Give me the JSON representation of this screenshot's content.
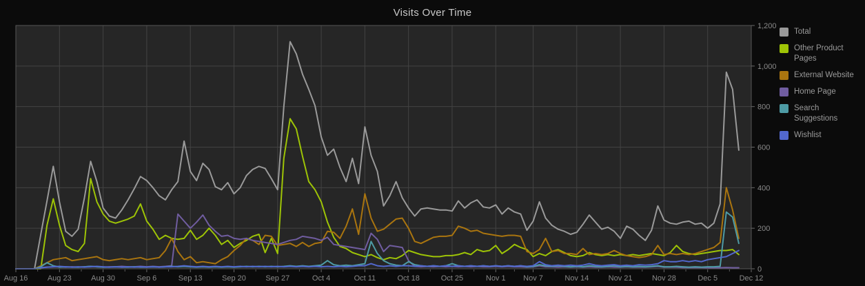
{
  "title": "Visits Over Time",
  "panel": {
    "background_color": "#0b0b0b",
    "plot_background_color": "#262626",
    "grid_color": "#434343",
    "border_color": "#575757",
    "axis_label_color": "#8a8a8a",
    "title_color": "#c9c9c9",
    "legend_text_color": "#9a9a9a"
  },
  "legend": {
    "position": "right",
    "items": [
      {
        "label": "Total",
        "color": "#9a9a9a"
      },
      {
        "label": "Other Product Pages",
        "color": "#9ec406"
      },
      {
        "label": "External Website",
        "color": "#aa750f"
      },
      {
        "label": "Home Page",
        "color": "#705da0"
      },
      {
        "label": "Search Suggestions",
        "color": "#4e9ba5"
      },
      {
        "label": "Wishlist",
        "color": "#5268cf"
      }
    ]
  },
  "chart_data": {
    "type": "line",
    "title": "Visits Over Time",
    "grid": true,
    "legend_position": "right",
    "x_axis": {
      "unit": "day",
      "start_label": "Aug 16",
      "end_label": "Dec 12",
      "total_days": 118,
      "ticks": [
        {
          "label": "Aug 16",
          "day": 0
        },
        {
          "label": "Aug 23",
          "day": 7
        },
        {
          "label": "Aug 30",
          "day": 14
        },
        {
          "label": "Sep 6",
          "day": 21
        },
        {
          "label": "Sep 13",
          "day": 28
        },
        {
          "label": "Sep 20",
          "day": 35
        },
        {
          "label": "Sep 27",
          "day": 42
        },
        {
          "label": "Oct 4",
          "day": 49
        },
        {
          "label": "Oct 11",
          "day": 56
        },
        {
          "label": "Oct 18",
          "day": 63
        },
        {
          "label": "Oct 25",
          "day": 70
        },
        {
          "label": "Nov 1",
          "day": 77
        },
        {
          "label": "Nov 7",
          "day": 83
        },
        {
          "label": "Nov 14",
          "day": 90
        },
        {
          "label": "Nov 21",
          "day": 97
        },
        {
          "label": "Nov 28",
          "day": 104
        },
        {
          "label": "Dec 5",
          "day": 111
        },
        {
          "label": "Dec 12",
          "day": 118
        }
      ]
    },
    "y_axis": {
      "min": 0,
      "max": 1200,
      "side": "right",
      "ticks": [
        {
          "label": "0",
          "value": 0
        },
        {
          "label": "200",
          "value": 200
        },
        {
          "label": "400",
          "value": 400
        },
        {
          "label": "600",
          "value": 600
        },
        {
          "label": "800",
          "value": 800
        },
        {
          "label": "1,000",
          "value": 1000
        },
        {
          "label": "1,200",
          "value": 1200
        }
      ]
    },
    "values_start_day": 0,
    "values_interval_days": 1,
    "series": [
      {
        "name": "Total",
        "color": "#9a9a9a",
        "values": [
          0,
          0,
          0,
          0,
          170,
          335,
          505,
          330,
          185,
          160,
          195,
          350,
          530,
          430,
          300,
          260,
          250,
          290,
          340,
          395,
          455,
          435,
          400,
          360,
          340,
          390,
          430,
          630,
          480,
          435,
          520,
          490,
          405,
          390,
          425,
          370,
          400,
          460,
          490,
          505,
          495,
          445,
          390,
          800,
          1120,
          1060,
          960,
          885,
          805,
          650,
          560,
          590,
          500,
          430,
          545,
          420,
          700,
          560,
          480,
          310,
          360,
          430,
          350,
          300,
          260,
          295,
          300,
          295,
          290,
          290,
          285,
          335,
          300,
          325,
          340,
          305,
          300,
          315,
          270,
          300,
          280,
          270,
          190,
          235,
          330,
          250,
          215,
          195,
          185,
          170,
          180,
          220,
          265,
          230,
          195,
          205,
          185,
          150,
          210,
          195,
          165,
          140,
          190,
          310,
          240,
          225,
          220,
          230,
          235,
          220,
          225,
          200,
          225,
          320,
          970,
          885,
          585
        ]
      },
      {
        "name": "Other Product Pages",
        "color": "#9ec406",
        "values": [
          0,
          0,
          0,
          0,
          0,
          215,
          345,
          215,
          115,
          95,
          85,
          125,
          445,
          330,
          270,
          235,
          225,
          235,
          245,
          260,
          320,
          235,
          195,
          145,
          165,
          150,
          145,
          150,
          190,
          145,
          165,
          200,
          165,
          120,
          140,
          105,
          125,
          140,
          160,
          170,
          80,
          150,
          75,
          545,
          740,
          690,
          555,
          430,
          390,
          330,
          230,
          155,
          110,
          100,
          80,
          70,
          60,
          70,
          55,
          45,
          55,
          50,
          65,
          90,
          80,
          70,
          65,
          60,
          60,
          65,
          65,
          70,
          80,
          70,
          95,
          85,
          90,
          115,
          75,
          95,
          120,
          105,
          95,
          60,
          75,
          65,
          85,
          95,
          80,
          65,
          60,
          65,
          80,
          70,
          65,
          70,
          65,
          70,
          65,
          70,
          65,
          70,
          75,
          70,
          65,
          80,
          115,
          85,
          75,
          70,
          75,
          80,
          85,
          90,
          90,
          95,
          70
        ]
      },
      {
        "name": "External Website",
        "color": "#aa750f",
        "values": [
          0,
          0,
          0,
          0,
          15,
          30,
          45,
          50,
          55,
          40,
          45,
          50,
          55,
          60,
          45,
          40,
          45,
          50,
          45,
          50,
          55,
          45,
          50,
          55,
          90,
          150,
          85,
          45,
          60,
          30,
          35,
          30,
          25,
          45,
          60,
          90,
          115,
          150,
          140,
          120,
          165,
          160,
          115,
          120,
          125,
          110,
          130,
          110,
          125,
          130,
          185,
          180,
          150,
          210,
          295,
          170,
          370,
          250,
          185,
          195,
          220,
          245,
          250,
          200,
          135,
          125,
          140,
          155,
          160,
          160,
          165,
          210,
          200,
          185,
          190,
          175,
          170,
          165,
          160,
          165,
          165,
          160,
          85,
          75,
          95,
          150,
          85,
          90,
          75,
          75,
          70,
          100,
          70,
          75,
          70,
          75,
          90,
          75,
          65,
          60,
          55,
          60,
          70,
          115,
          70,
          75,
          70,
          75,
          70,
          75,
          85,
          95,
          105,
          130,
          400,
          290,
          150
        ]
      },
      {
        "name": "Home Page",
        "color": "#705da0",
        "values": [
          0,
          0,
          0,
          0,
          5,
          8,
          10,
          10,
          8,
          10,
          8,
          10,
          12,
          10,
          8,
          10,
          10,
          12,
          10,
          10,
          12,
          10,
          12,
          10,
          12,
          15,
          270,
          235,
          200,
          230,
          265,
          215,
          185,
          160,
          165,
          150,
          145,
          150,
          140,
          135,
          130,
          125,
          120,
          130,
          140,
          145,
          160,
          155,
          150,
          140,
          155,
          120,
          115,
          110,
          105,
          100,
          95,
          175,
          145,
          85,
          115,
          110,
          105,
          40,
          12,
          10,
          12,
          10,
          12,
          10,
          12,
          10,
          12,
          10,
          12,
          10,
          10,
          12,
          10,
          12,
          10,
          10,
          8,
          10,
          15,
          10,
          10,
          8,
          10,
          8,
          10,
          8,
          10,
          8,
          8,
          10,
          8,
          8,
          10,
          8,
          8,
          8,
          10,
          12,
          8,
          8,
          8,
          6,
          6,
          6,
          6,
          5,
          5,
          5,
          6,
          5,
          5
        ]
      },
      {
        "name": "Search Suggestions",
        "color": "#4e9ba5",
        "values": [
          0,
          0,
          0,
          0,
          10,
          30,
          15,
          8,
          10,
          8,
          8,
          10,
          12,
          10,
          8,
          8,
          10,
          8,
          8,
          10,
          8,
          8,
          10,
          8,
          10,
          12,
          10,
          12,
          10,
          8,
          10,
          8,
          10,
          8,
          10,
          8,
          10,
          12,
          10,
          12,
          10,
          12,
          10,
          12,
          15,
          12,
          15,
          12,
          15,
          18,
          40,
          20,
          15,
          18,
          15,
          20,
          25,
          135,
          75,
          40,
          25,
          18,
          15,
          35,
          20,
          15,
          12,
          15,
          12,
          15,
          25,
          15,
          12,
          15,
          12,
          15,
          12,
          15,
          12,
          15,
          12,
          15,
          10,
          12,
          20,
          15,
          12,
          15,
          12,
          10,
          12,
          10,
          15,
          12,
          10,
          12,
          15,
          10,
          12,
          10,
          12,
          10,
          12,
          15,
          10,
          10,
          12,
          10,
          8,
          10,
          8,
          10,
          10,
          12,
          280,
          255,
          125
        ]
      },
      {
        "name": "Wishlist",
        "color": "#5268cf",
        "values": [
          0,
          0,
          0,
          0,
          5,
          8,
          10,
          12,
          10,
          8,
          10,
          8,
          10,
          12,
          10,
          8,
          10,
          8,
          10,
          8,
          10,
          8,
          10,
          8,
          10,
          10,
          12,
          15,
          12,
          10,
          12,
          10,
          12,
          10,
          12,
          10,
          12,
          10,
          12,
          10,
          12,
          10,
          12,
          10,
          12,
          10,
          12,
          10,
          12,
          10,
          12,
          10,
          12,
          10,
          12,
          15,
          15,
          25,
          15,
          12,
          15,
          12,
          15,
          15,
          12,
          15,
          12,
          15,
          12,
          15,
          12,
          15,
          12,
          15,
          12,
          15,
          12,
          15,
          12,
          15,
          12,
          15,
          12,
          15,
          35,
          20,
          15,
          18,
          15,
          18,
          15,
          18,
          25,
          18,
          15,
          18,
          20,
          15,
          18,
          15,
          20,
          18,
          20,
          25,
          40,
          35,
          35,
          40,
          35,
          40,
          35,
          45,
          50,
          55,
          60,
          75,
          90
        ]
      }
    ]
  }
}
